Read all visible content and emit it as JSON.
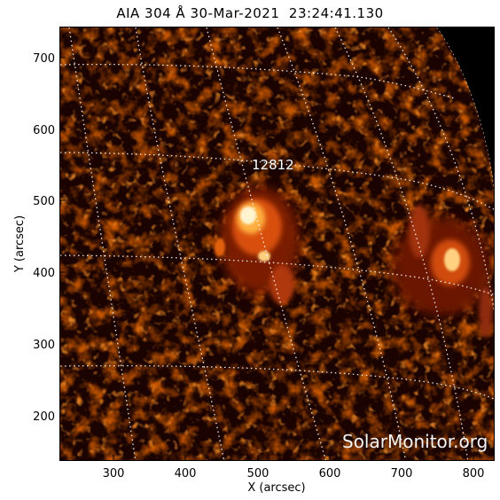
{
  "title": "AIA 304 Å 30-Mar-2021  23:24:41.130",
  "region_label": "12812",
  "watermark": "SolarMonitor.org",
  "x_axis": {
    "label": "X (arcsec)",
    "ticks": [
      "300",
      "400",
      "500",
      "600",
      "700",
      "800"
    ],
    "range": [
      222,
      830
    ]
  },
  "y_axis": {
    "label": "Y (arcsec)",
    "ticks": [
      "700",
      "600",
      "500",
      "400",
      "300",
      "200"
    ],
    "range": [
      140,
      745
    ]
  },
  "colors": {
    "background": "#000000",
    "dim": "#3a0800",
    "mid": "#a02808",
    "bright": "#ff7a1a",
    "core": "#fff4d0",
    "grid": "#ffffff"
  }
}
